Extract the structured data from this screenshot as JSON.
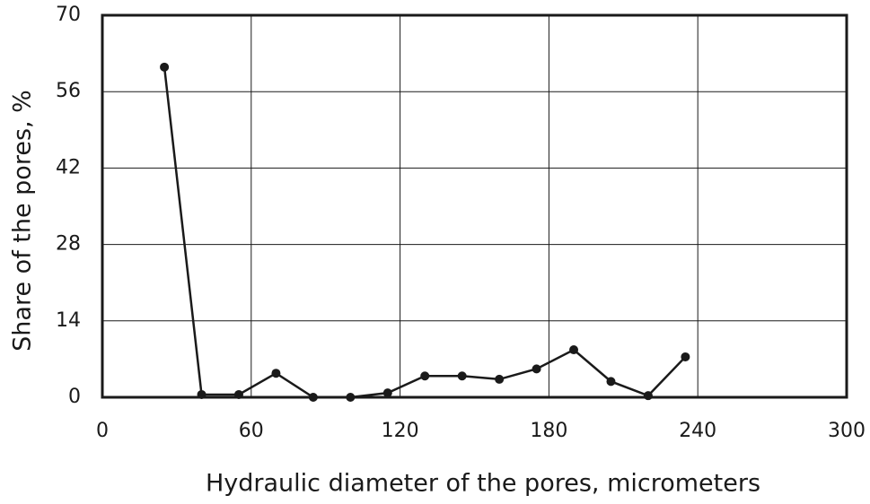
{
  "chart_data": {
    "type": "line",
    "x_label": "Hydraulic diameter of the pores, micrometers",
    "y_label": "Share of the pores, %",
    "x": [
      25,
      40,
      55,
      70,
      85,
      100,
      115,
      130,
      145,
      160,
      175,
      190,
      205,
      220,
      235
    ],
    "series": [
      {
        "color": "#1a1a1a",
        "values": [
          60.5,
          0.5,
          0.5,
          4.4,
          0,
          0,
          0.8,
          3.9,
          3.9,
          3.3,
          5.2,
          8.7,
          2.9,
          0.3,
          7.4
        ]
      }
    ],
    "xlim": [
      0,
      300
    ],
    "xticks": [
      0,
      60,
      120,
      180,
      240,
      300
    ],
    "ylim": [
      0,
      70
    ],
    "yticks": [
      0,
      14,
      28,
      42,
      56,
      70
    ],
    "grid": true
  }
}
